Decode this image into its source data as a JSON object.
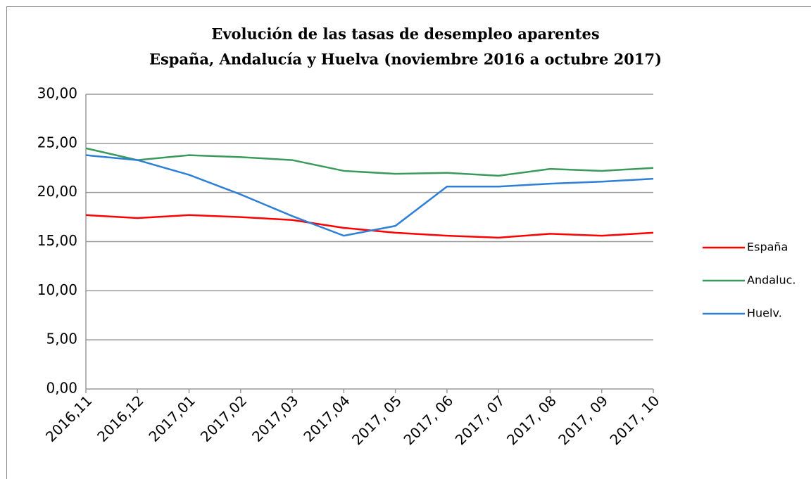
{
  "chart_data": {
    "type": "line",
    "title": [
      "Evolución de las tasas de desempleo aparentes",
      "España, Andalucía y Huelva (noviembre 2016 a octubre 2017)"
    ],
    "categories": [
      "2016,11",
      "2016,12",
      "2017,01",
      "2017,02",
      "2017,03",
      "2017,04",
      "2017, 05",
      "2017, 06",
      "2017, 07",
      "2017, 08",
      "2017, 09",
      "2017, 10"
    ],
    "series": [
      {
        "name": "España",
        "color": "#ff0000",
        "values": [
          17.7,
          17.4,
          17.7,
          17.5,
          17.2,
          16.4,
          15.9,
          15.6,
          15.4,
          15.8,
          15.6,
          15.9
        ]
      },
      {
        "name": "Andaluc.",
        "color": "#3a9a5c",
        "values": [
          24.5,
          23.3,
          23.8,
          23.6,
          23.3,
          22.2,
          21.9,
          22.0,
          21.7,
          22.4,
          22.2,
          22.5
        ]
      },
      {
        "name": "Huelv.",
        "color": "#2e7fd6",
        "values": [
          23.8,
          23.3,
          21.8,
          19.8,
          17.6,
          15.6,
          16.6,
          20.6,
          20.6,
          20.9,
          21.1,
          21.4
        ]
      }
    ],
    "ylim": [
      0,
      30
    ],
    "yticks": [
      {
        "value": 0,
        "label": "0,00"
      },
      {
        "value": 5,
        "label": "5,00"
      },
      {
        "value": 10,
        "label": "10,00"
      },
      {
        "value": 15,
        "label": "15,00"
      },
      {
        "value": 20,
        "label": "20,00"
      },
      {
        "value": 25,
        "label": "25,00"
      },
      {
        "value": 30,
        "label": "30,00"
      }
    ],
    "grid": true,
    "legend": "right"
  }
}
